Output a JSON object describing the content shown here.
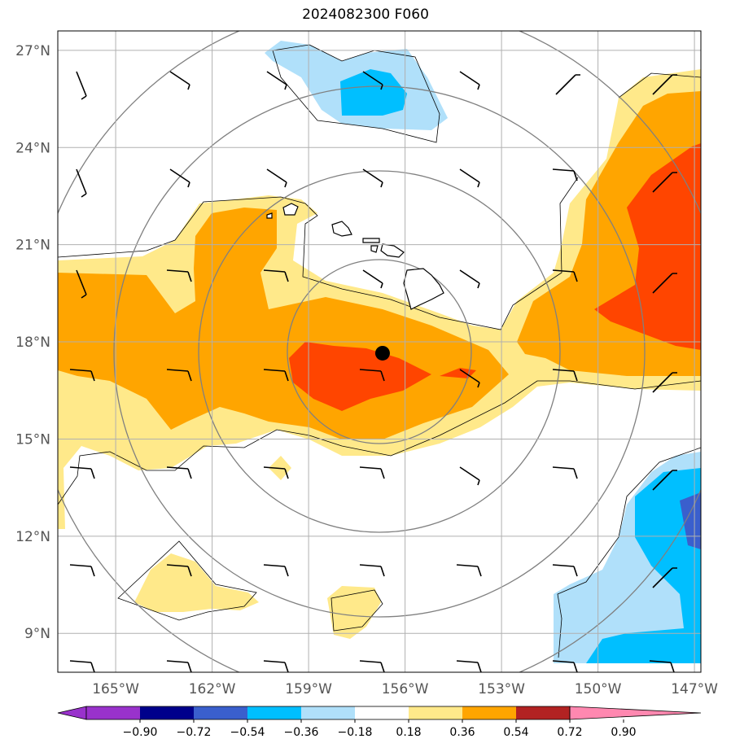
{
  "title": "2024082300 F060",
  "axes": {
    "lat_ticks": [
      {
        "value": 27,
        "label": "27°N"
      },
      {
        "value": 24,
        "label": "24°N"
      },
      {
        "value": 21,
        "label": "21°N"
      },
      {
        "value": 18,
        "label": "18°N"
      },
      {
        "value": 15,
        "label": "15°N"
      },
      {
        "value": 12,
        "label": "12°N"
      },
      {
        "value": 9,
        "label": "9°N"
      }
    ],
    "lon_ticks": [
      {
        "value": -165,
        "label": "165°W"
      },
      {
        "value": -162,
        "label": "162°W"
      },
      {
        "value": -159,
        "label": "159°W"
      },
      {
        "value": -156,
        "label": "156°W"
      },
      {
        "value": -153,
        "label": "153°W"
      },
      {
        "value": -150,
        "label": "150°W"
      },
      {
        "value": -147,
        "label": "147°W"
      }
    ],
    "lon_range": [
      -166.8,
      -146.8
    ],
    "lat_range": [
      7.8,
      27.6
    ],
    "grid": true
  },
  "storm_center": {
    "lon": -156.7,
    "lat": 17.65
  },
  "range_rings_deg": [
    3,
    6,
    9,
    12
  ],
  "colorbar": {
    "colors": [
      "#9932cc",
      "#00008b",
      "#3a5fcd",
      "#00bfff",
      "#b0e0fa",
      "#ffffff",
      "#ffe98a",
      "#ffa500",
      "#ff4500",
      "#b22222",
      "#ff88b0"
    ],
    "ticks": [
      "−0.90",
      "−0.72",
      "−0.54",
      "−0.36",
      "−0.18",
      "0.18",
      "0.36",
      "0.54",
      "0.72",
      "0.90"
    ],
    "extend": "both"
  }
}
